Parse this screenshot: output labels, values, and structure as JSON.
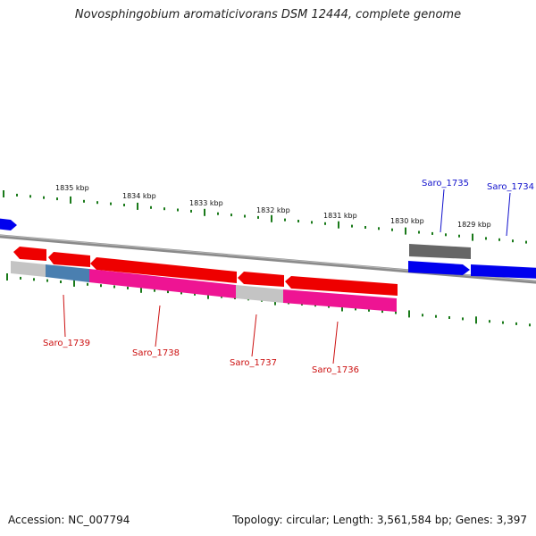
{
  "title": "Novosphingobium aromaticivorans DSM 12444, complete genome",
  "footer": {
    "accession": "Accession: NC_007794",
    "summary": "Topology: circular; Length: 3,561,584 bp; Genes: 3,397"
  },
  "colors": {
    "backbone": "#8a8a8a",
    "tick": "#1a7a1a",
    "forward_gene": "#0000ee",
    "reverse_gene": "#ee0000",
    "cds_magenta": "#ee1493",
    "cds_steel": "#4a7fb0",
    "cds_grey": "#c4c4c4",
    "cds_dark": "#666666",
    "label_forward": "#1010cc",
    "label_reverse": "#cc1010"
  },
  "ticks": {
    "labels": [
      "1835 kbp",
      "1834 kbp",
      "1833 kbp",
      "1832 kbp",
      "1831 kbp",
      "1830 kbp",
      "1829 kbp"
    ]
  },
  "genes": [
    {
      "label": "Saro_1739",
      "strand": "reverse"
    },
    {
      "label": "Saro_1738",
      "strand": "reverse"
    },
    {
      "label": "Saro_1737",
      "strand": "reverse"
    },
    {
      "label": "Saro_1736",
      "strand": "reverse"
    },
    {
      "label": "Saro_1735",
      "strand": "forward"
    },
    {
      "label": "Saro_1734",
      "strand": "forward"
    }
  ]
}
